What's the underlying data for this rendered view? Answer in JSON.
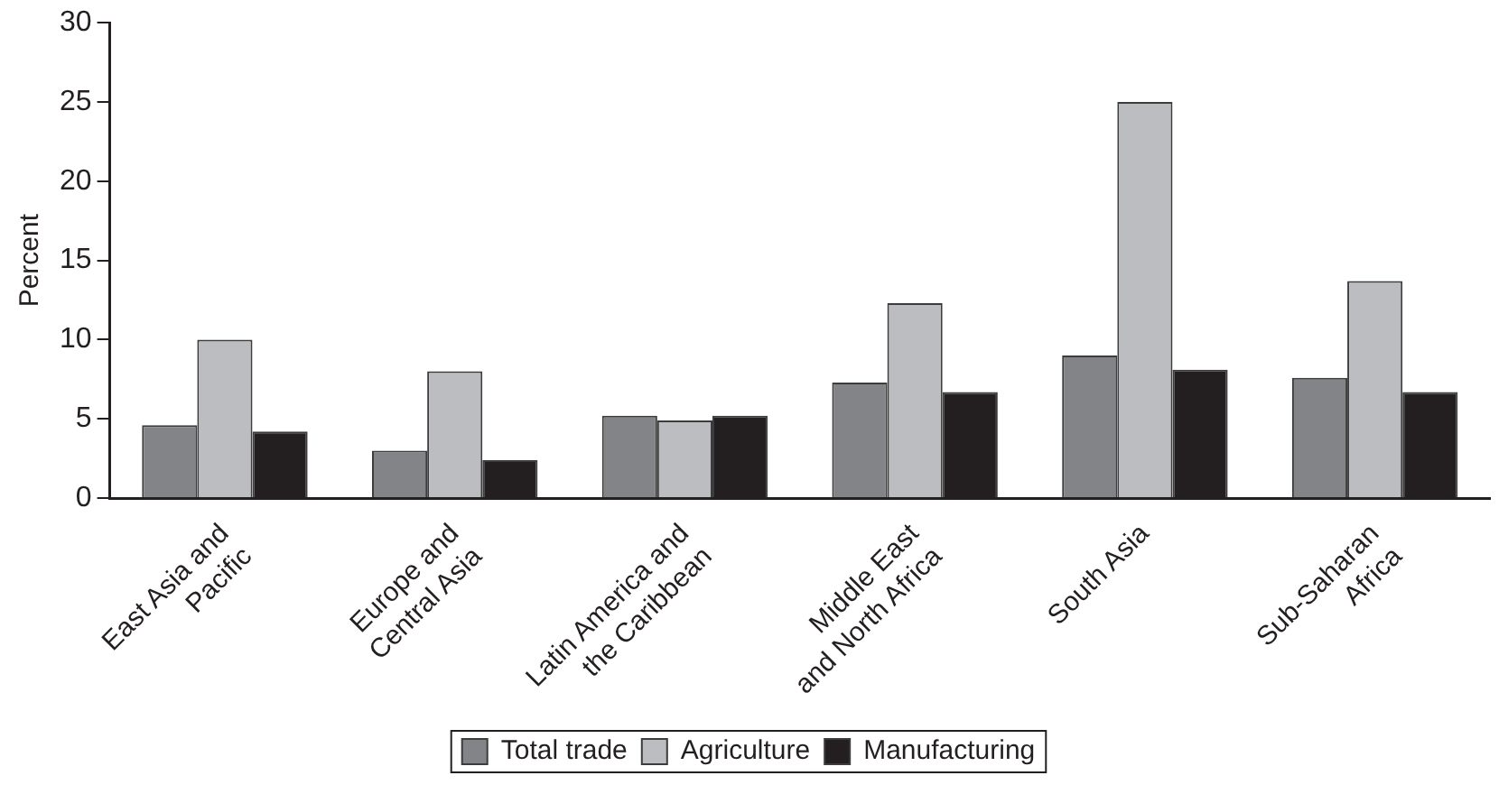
{
  "chart_data": {
    "type": "bar",
    "ylabel": "Percent",
    "categories": [
      "East Asia and\nPacific",
      "Europe and\nCentral Asia",
      "Latin America and\nthe Caribbean",
      "Middle East\nand North Africa",
      "South Asia",
      "Sub-Saharan\nAfrica"
    ],
    "series": [
      {
        "name": "Total trade",
        "color": "#838487",
        "values": [
          4.6,
          3.0,
          5.2,
          7.3,
          9.0,
          7.6
        ]
      },
      {
        "name": "Agriculture",
        "color": "#bcbdc1",
        "values": [
          10.0,
          8.0,
          4.9,
          12.3,
          25.0,
          13.7
        ]
      },
      {
        "name": "Manufacturing",
        "color": "#231f20",
        "values": [
          4.2,
          2.4,
          5.2,
          6.7,
          8.1,
          6.7
        ]
      }
    ],
    "ylim": [
      0,
      30
    ],
    "yticks": [
      0,
      5,
      10,
      15,
      20,
      25,
      30
    ],
    "grid": false,
    "legend": "bottom"
  }
}
